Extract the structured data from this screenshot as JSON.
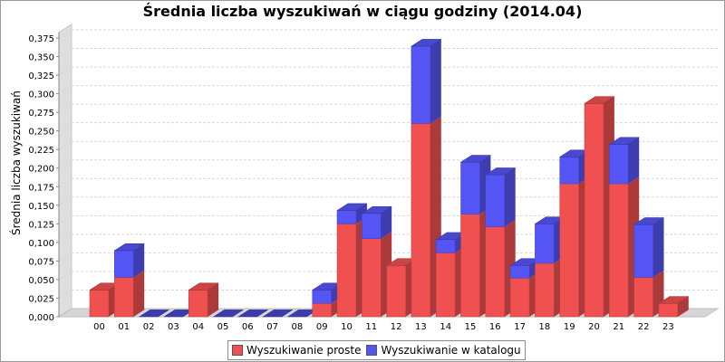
{
  "chart_data": {
    "type": "bar",
    "stacked": true,
    "title": "Średnia liczba wyszukiwań w ciągu godziny (2014.04)",
    "xlabel": "",
    "ylabel": "Średnia liczba wyszukiwań",
    "ylim": [
      0,
      0.385
    ],
    "yticks": [
      "0,000",
      "0,025",
      "0,050",
      "0,075",
      "0,100",
      "0,125",
      "0,150",
      "0,175",
      "0,200",
      "0,225",
      "0,250",
      "0,275",
      "0,300",
      "0,325",
      "0,350",
      "0,375"
    ],
    "categories": [
      "00",
      "01",
      "02",
      "03",
      "04",
      "05",
      "06",
      "07",
      "08",
      "09",
      "10",
      "11",
      "12",
      "13",
      "14",
      "15",
      "16",
      "17",
      "18",
      "19",
      "20",
      "21",
      "22",
      "23"
    ],
    "series": [
      {
        "name": "Wyszukiwanie proste",
        "color": "#f05050",
        "values": [
          0.036,
          0.053,
          0,
          0,
          0.036,
          0,
          0,
          0,
          0,
          0.018,
          0.125,
          0.105,
          0.069,
          0.26,
          0.086,
          0.138,
          0.121,
          0.052,
          0.072,
          0.179,
          0.287,
          0.179,
          0.053,
          0.018
        ]
      },
      {
        "name": "Wyszukiwanie w katalogu",
        "color": "#5555f5",
        "values": [
          0,
          0.036,
          0,
          0,
          0,
          0,
          0,
          0,
          0,
          0.018,
          0.018,
          0.034,
          0,
          0.104,
          0.018,
          0.07,
          0.07,
          0.017,
          0.053,
          0.036,
          0,
          0.053,
          0.071,
          0
        ]
      }
    ],
    "grid": true,
    "legend": "bottom"
  }
}
